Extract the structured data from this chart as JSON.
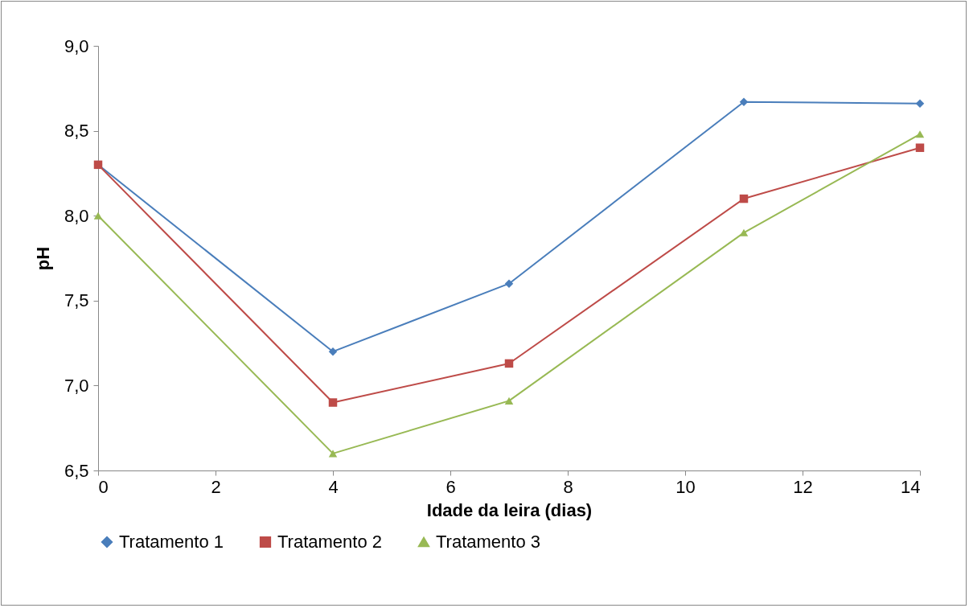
{
  "chart_data": {
    "type": "line",
    "xlabel": "Idade da leira (dias)",
    "ylabel": "pH",
    "x": [
      0,
      4,
      7,
      11,
      14
    ],
    "series": [
      {
        "name": "Tratamento 1",
        "color": "#4a7ebb",
        "marker": "diamond",
        "values": [
          8.3,
          7.2,
          7.6,
          8.67,
          8.66
        ]
      },
      {
        "name": "Tratamento 2",
        "color": "#be4b48",
        "marker": "square",
        "values": [
          8.3,
          6.9,
          7.13,
          8.1,
          8.4
        ]
      },
      {
        "name": "Tratamento 3",
        "color": "#98b954",
        "marker": "triangle",
        "values": [
          8.0,
          6.6,
          6.91,
          7.9,
          8.48
        ]
      }
    ],
    "xlim": [
      0,
      14
    ],
    "xticks": [
      0,
      2,
      4,
      6,
      8,
      10,
      12,
      14
    ],
    "ylim": [
      6.5,
      9.0
    ],
    "yticks": [
      {
        "value": 6.5,
        "label": "6,5"
      },
      {
        "value": 7.0,
        "label": "7,0"
      },
      {
        "value": 7.5,
        "label": "7,5"
      },
      {
        "value": 8.0,
        "label": "8,0"
      },
      {
        "value": 8.5,
        "label": "8,5"
      },
      {
        "value": 9.0,
        "label": "9,0"
      }
    ],
    "legend": "bottom",
    "grid": false
  }
}
